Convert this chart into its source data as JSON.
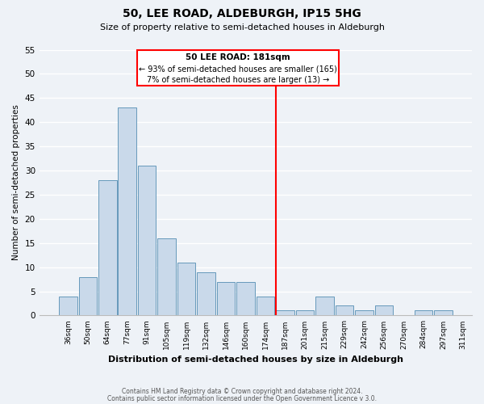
{
  "title": "50, LEE ROAD, ALDEBURGH, IP15 5HG",
  "subtitle": "Size of property relative to semi-detached houses in Aldeburgh",
  "xlabel": "Distribution of semi-detached houses by size in Aldeburgh",
  "ylabel": "Number of semi-detached properties",
  "bin_labels": [
    "36sqm",
    "50sqm",
    "64sqm",
    "77sqm",
    "91sqm",
    "105sqm",
    "119sqm",
    "132sqm",
    "146sqm",
    "160sqm",
    "174sqm",
    "187sqm",
    "201sqm",
    "215sqm",
    "229sqm",
    "242sqm",
    "256sqm",
    "270sqm",
    "284sqm",
    "297sqm",
    "311sqm"
  ],
  "bar_heights": [
    4,
    8,
    28,
    43,
    31,
    16,
    11,
    9,
    7,
    7,
    4,
    1,
    1,
    4,
    2,
    1,
    2,
    0,
    1,
    1
  ],
  "bar_color": "#c9d9ea",
  "bar_edge_color": "#6699bb",
  "ylim": [
    0,
    55
  ],
  "yticks": [
    0,
    5,
    10,
    15,
    20,
    25,
    30,
    35,
    40,
    45,
    50,
    55
  ],
  "vline_color": "red",
  "annotation_title": "50 LEE ROAD: 181sqm",
  "annotation_line1": "← 93% of semi-detached houses are smaller (165)",
  "annotation_line2": "7% of semi-detached houses are larger (13) →",
  "footnote1": "Contains HM Land Registry data © Crown copyright and database right 2024.",
  "footnote2": "Contains public sector information licensed under the Open Government Licence v 3.0.",
  "bg_color": "#eef2f7",
  "grid_color": "#ffffff"
}
